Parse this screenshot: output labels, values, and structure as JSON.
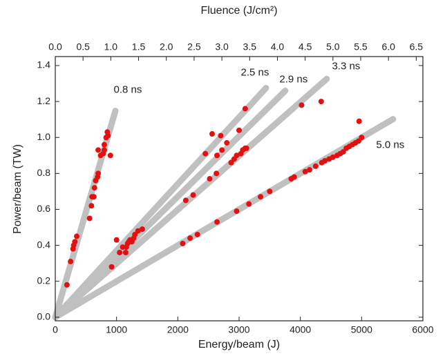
{
  "chart_data": {
    "type": "scatter",
    "x_label": "Energy/beam (J)",
    "y_label": "Power/beam (TW)",
    "x2_label": "Fluence (J/cm²)",
    "xlim": [
      0,
      6000
    ],
    "ylim": [
      -0.02,
      1.45
    ],
    "x2lim": [
      0,
      6.62
    ],
    "xticks": [
      0,
      1000,
      2000,
      3000,
      4000,
      5000,
      6000
    ],
    "yticks": [
      {
        "value": 0,
        "label": "0.0"
      },
      0.2,
      0.4,
      0.6,
      0.8,
      {
        "value": 1,
        "label": "1.0"
      },
      1.2,
      1.4
    ],
    "x2ticks": [
      {
        "value": 0,
        "label": "0.0"
      },
      0.5,
      {
        "value": 1,
        "label": "1.0"
      },
      1.5,
      {
        "value": 2,
        "label": "2.0"
      },
      2.5,
      {
        "value": 3,
        "label": "3.0"
      },
      3.5,
      {
        "value": 4,
        "label": "4.0"
      },
      4.5,
      {
        "value": 5,
        "label": "5.0"
      },
      5.5,
      {
        "value": 6,
        "label": "6.0"
      },
      6.5
    ],
    "series": [
      {
        "name": "0.8 ns",
        "type": "line",
        "color": "#c0c0c0",
        "x": [
          0,
          981
        ],
        "values": [
          0,
          1.148
        ]
      },
      {
        "name": "2.5 ns",
        "type": "line",
        "color": "#c0c0c0",
        "x": [
          0,
          3439
        ],
        "values": [
          0,
          1.275
        ]
      },
      {
        "name": "2.9 ns",
        "type": "line",
        "color": "#c0c0c0",
        "x": [
          0,
          3754
        ],
        "values": [
          0,
          1.26
        ]
      },
      {
        "name": "3.3 ns",
        "type": "line",
        "color": "#c0c0c0",
        "x": [
          0,
          4431
        ],
        "values": [
          0,
          1.326
        ]
      },
      {
        "name": "5.0 ns",
        "type": "line",
        "color": "#c0c0c0",
        "x": [
          0,
          5513
        ],
        "values": [
          0,
          1.102
        ]
      },
      {
        "type": "scatter",
        "color": "#e31010",
        "x": [
          190,
          250,
          290,
          300,
          320,
          350,
          560,
          590,
          600,
          630,
          640,
          660,
          690,
          700,
          700,
          740,
          780,
          800,
          800,
          830,
          850,
          860,
          900,
          920,
          1000,
          1050,
          1100,
          1150,
          1160,
          1180,
          1200,
          1220,
          1250,
          1280,
          1300,
          1350,
          1420,
          2130,
          2250,
          2450,
          2520,
          2560,
          2630,
          2640,
          2700,
          2720,
          2800,
          2870,
          2920,
          2960,
          3000,
          3030,
          3060,
          3100,
          3120,
          3100,
          4020,
          4340,
          2080,
          2200,
          2320,
          2640,
          2960,
          3160,
          3350,
          3500,
          3850,
          3900,
          4080,
          4150,
          4250,
          4350,
          4400,
          4470,
          4530,
          4600,
          4650,
          4700,
          4750,
          4800,
          4850,
          4900,
          4950,
          5000,
          4960
        ],
        "values": [
          0.18,
          0.31,
          0.38,
          0.4,
          0.42,
          0.45,
          0.55,
          0.62,
          0.67,
          0.67,
          0.72,
          0.76,
          0.78,
          0.8,
          0.93,
          0.9,
          0.91,
          0.93,
          0.96,
          1.0,
          1.03,
          1.01,
          0.9,
          0.28,
          0.43,
          0.36,
          0.39,
          0.36,
          0.39,
          0.41,
          0.42,
          0.43,
          0.42,
          0.44,
          0.46,
          0.48,
          0.49,
          0.65,
          0.68,
          0.91,
          0.77,
          1.02,
          0.8,
          0.9,
          1.01,
          0.93,
          0.97,
          0.86,
          0.88,
          0.9,
          1.04,
          0.91,
          0.93,
          0.94,
          0.94,
          1.16,
          1.18,
          1.2,
          0.41,
          0.44,
          0.46,
          0.53,
          0.59,
          0.63,
          0.67,
          0.7,
          0.77,
          0.78,
          0.81,
          0.82,
          0.84,
          0.86,
          0.87,
          0.88,
          0.89,
          0.9,
          0.91,
          0.92,
          0.94,
          0.95,
          0.96,
          0.97,
          0.98,
          1.0,
          1.09
        ]
      }
    ]
  }
}
